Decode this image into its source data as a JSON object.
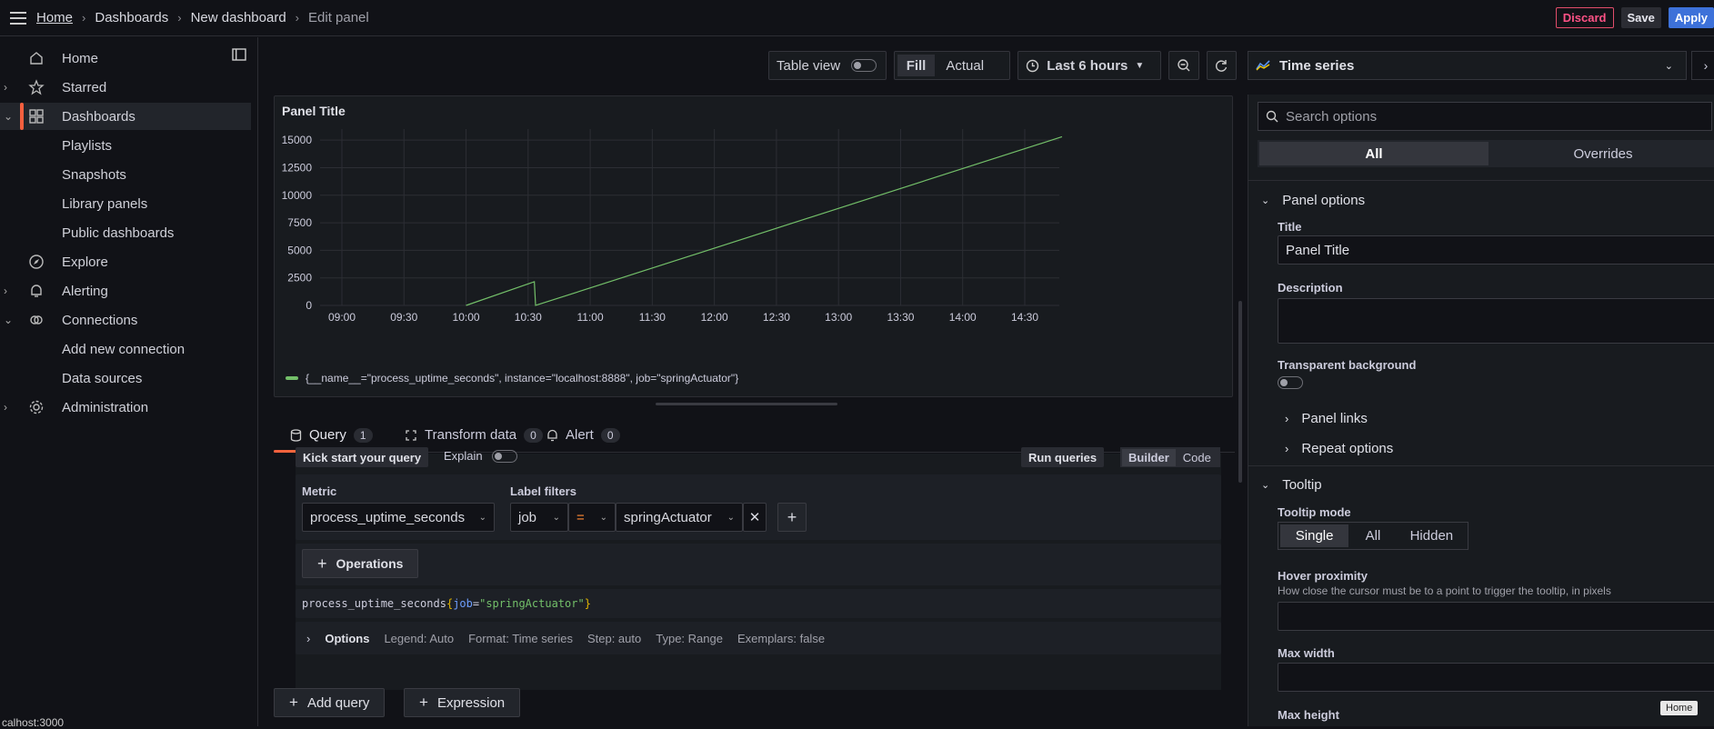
{
  "topbar": {
    "breadcrumbs": [
      "Home",
      "Dashboards",
      "New dashboard",
      "Edit panel"
    ],
    "discard": "Discard",
    "save": "Save",
    "apply": "Apply"
  },
  "sidebar": {
    "items": [
      {
        "label": "Home",
        "icon": "home-icon"
      },
      {
        "label": "Starred",
        "icon": "star-icon"
      },
      {
        "label": "Dashboards",
        "icon": "apps-icon"
      },
      {
        "label": "Playlists"
      },
      {
        "label": "Snapshots"
      },
      {
        "label": "Library panels"
      },
      {
        "label": "Public dashboards"
      },
      {
        "label": "Explore",
        "icon": "compass-icon"
      },
      {
        "label": "Alerting",
        "icon": "bell-icon"
      },
      {
        "label": "Connections",
        "icon": "link-icon"
      },
      {
        "label": "Add new connection"
      },
      {
        "label": "Data sources"
      },
      {
        "label": "Administration",
        "icon": "gear-icon"
      }
    ]
  },
  "toolbar": {
    "table_view": "Table view",
    "fill": "Fill",
    "actual": "Actual",
    "time_range": "Last 6 hours"
  },
  "panel": {
    "title": "Panel Title",
    "legend": "{__name__=\"process_uptime_seconds\", instance=\"localhost:8888\", job=\"springActuator\"}"
  },
  "chart_data": {
    "type": "line",
    "x": [
      "09:00",
      "09:30",
      "10:00",
      "10:30",
      "11:00",
      "11:30",
      "12:00",
      "12:30",
      "13:00",
      "13:30",
      "14:00",
      "14:30"
    ],
    "yticks": [
      "15000",
      "12500",
      "10000",
      "7500",
      "5000",
      "2500",
      "0"
    ],
    "ylim": [
      0,
      16000
    ],
    "series": [
      {
        "name": "{__name__=\"process_uptime_seconds\", instance=\"localhost:8888\", job=\"springActuator\"}",
        "color": "#73bf69",
        "points": [
          [
            10.0,
            0
          ],
          [
            10.55,
            2150
          ],
          [
            10.56,
            0
          ],
          [
            14.8,
            15300
          ]
        ]
      }
    ],
    "grid": true
  },
  "tabs": [
    {
      "label": "Query",
      "count": "1"
    },
    {
      "label": "Transform data",
      "count": "0"
    },
    {
      "label": "Alert",
      "count": "0"
    }
  ],
  "query": {
    "kick_start": "Kick start your query",
    "explain": "Explain",
    "run_queries": "Run queries",
    "builder": "Builder",
    "code": "Code",
    "metric_label": "Metric",
    "metric_value": "process_uptime_seconds",
    "label_filters": "Label filters",
    "label_key": "job",
    "label_op": "=",
    "label_value": "springActuator",
    "operations": "Operations",
    "promql_metric": "process_uptime_seconds",
    "promql_open": "{",
    "promql_key": "job",
    "promql_eq": "=",
    "promql_val": "\"springActuator\"",
    "promql_close": "}",
    "options": "Options",
    "options_summary": [
      "Legend: Auto",
      "Format: Time series",
      "Step: auto",
      "Type: Range",
      "Exemplars: false"
    ],
    "add_query": "Add query",
    "expression": "Expression"
  },
  "right": {
    "visualization": "Time series",
    "search_placeholder": "Search options",
    "all": "All",
    "overrides": "Overrides",
    "panel_options": "Panel options",
    "title_label": "Title",
    "title_value": "Panel Title",
    "description_label": "Description",
    "transparent_label": "Transparent background",
    "panel_links": "Panel links",
    "repeat_options": "Repeat options",
    "tooltip": "Tooltip",
    "tooltip_mode": "Tooltip mode",
    "modes": [
      "Single",
      "All",
      "Hidden"
    ],
    "hover_proximity": "Hover proximity",
    "hover_desc": "How close the cursor must be to a point to trigger the tooltip, in pixels",
    "max_width": "Max width",
    "max_height": "Max height"
  },
  "status_url": "calhost:3000",
  "home_badge": "Home"
}
